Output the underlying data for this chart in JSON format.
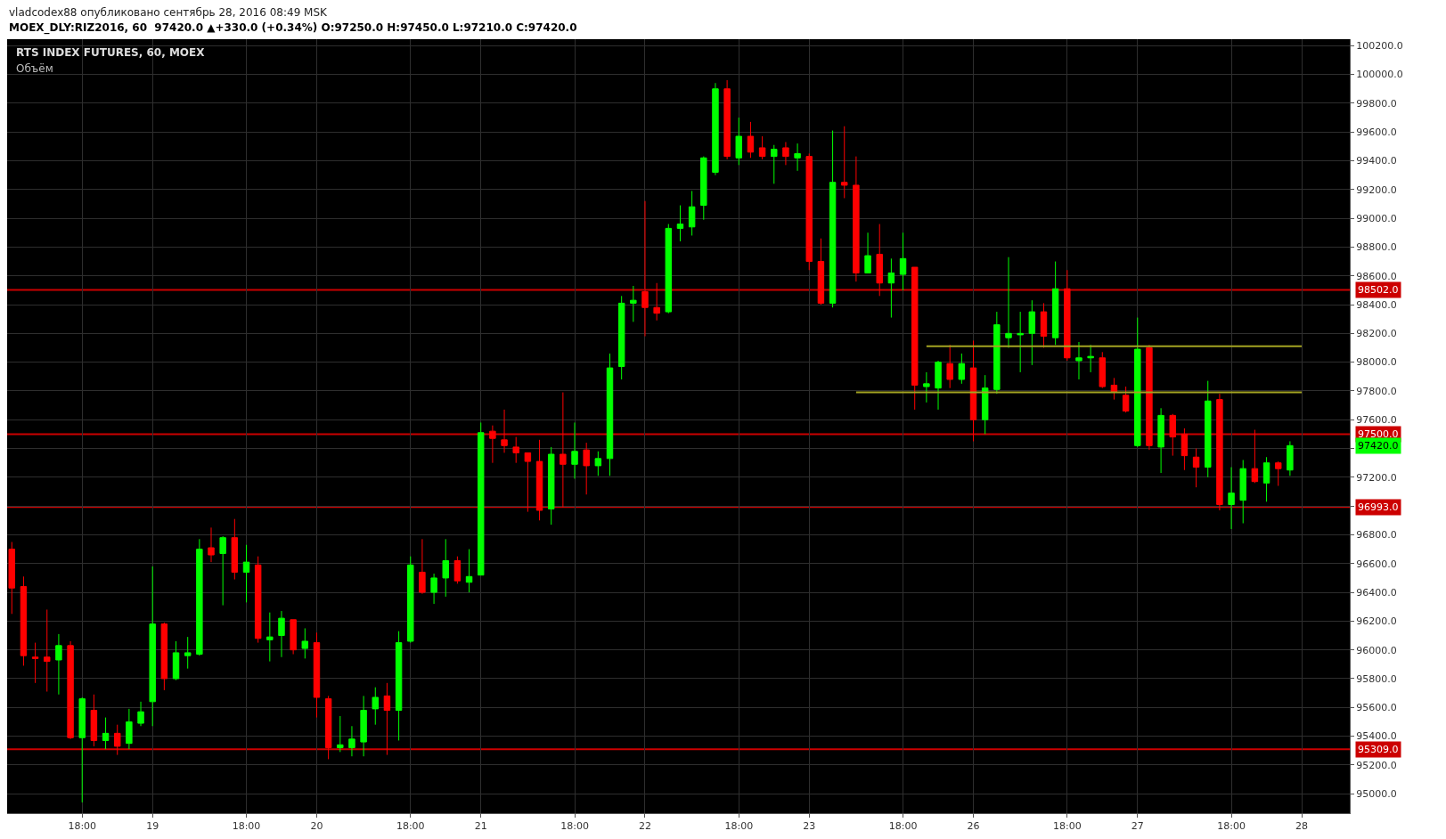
{
  "chart_data": {
    "type": "candlestick",
    "title": "RTS INDEX FUTURES, 60, MOEX",
    "subtitle": "MOEX_DLY:RIZ2016, 60  97420.0 ▲+330.0 (+0.34%) O:97250.0 H:97450.0 L:97210.0 C:97420.0",
    "annotations": [
      "vladcodex88 опубликовано сентябрь 28, 2016 08:49 MSK",
      "Объём",
      "97420.0"
    ],
    "categories": [
      null,
      null,
      null,
      null,
      null,
      null,
      "18:00",
      null,
      null,
      null,
      null,
      null,
      "19",
      null,
      null,
      null,
      null,
      null,
      null,
      null,
      "18:00",
      null,
      null,
      null,
      null,
      null,
      "20",
      null,
      null,
      null,
      null,
      null,
      null,
      null,
      "18:00",
      null,
      null,
      null,
      null,
      null,
      "21",
      null,
      null,
      null,
      null,
      null,
      null,
      null,
      "18:00",
      null,
      null,
      null,
      null,
      null,
      "22",
      null,
      null,
      null,
      null,
      null,
      null,
      null,
      "18:00",
      null,
      null,
      null,
      null,
      null,
      "23",
      null,
      null,
      null,
      null,
      null,
      null,
      null,
      "18:00",
      null,
      null,
      null,
      null,
      null,
      "26",
      null,
      null,
      null,
      null,
      null,
      null,
      null,
      "18:00",
      null,
      null,
      null,
      null,
      null,
      "27",
      null,
      null,
      null,
      null,
      null,
      null,
      null,
      "18:00",
      null,
      null,
      null,
      null,
      null,
      "28"
    ],
    "ohlc": [
      [
        96700,
        96750,
        96250,
        96430
      ],
      [
        96440,
        96510,
        95890,
        95960
      ],
      [
        95950,
        96050,
        95770,
        95940
      ],
      [
        95950,
        96280,
        95710,
        95920
      ],
      [
        95930,
        96110,
        95690,
        96030
      ],
      [
        96030,
        96060,
        95380,
        95390
      ],
      [
        95390,
        95670,
        94940,
        95660
      ],
      [
        95580,
        95690,
        95330,
        95370
      ],
      [
        95370,
        95530,
        95310,
        95420
      ],
      [
        95420,
        95480,
        95270,
        95330
      ],
      [
        95350,
        95590,
        95310,
        95500
      ],
      [
        95490,
        95640,
        95470,
        95570
      ],
      [
        95640,
        96580,
        95470,
        96180
      ],
      [
        96180,
        96190,
        95720,
        95800
      ],
      [
        95800,
        96060,
        95790,
        95980
      ],
      [
        95960,
        96090,
        95870,
        95980
      ],
      [
        95970,
        96770,
        95960,
        96700
      ],
      [
        96710,
        96850,
        96610,
        96660
      ],
      [
        96670,
        96790,
        96310,
        96780
      ],
      [
        96780,
        96910,
        96490,
        96540
      ],
      [
        96540,
        96730,
        96330,
        96610
      ],
      [
        96590,
        96650,
        96050,
        96080
      ],
      [
        96070,
        96260,
        95920,
        96090
      ],
      [
        96100,
        96270,
        95950,
        96220
      ],
      [
        96210,
        96210,
        95970,
        96000
      ],
      [
        96010,
        96150,
        95940,
        96060
      ],
      [
        96050,
        96120,
        95530,
        95670
      ],
      [
        95660,
        95680,
        95240,
        95320
      ],
      [
        95320,
        95540,
        95290,
        95340
      ],
      [
        95320,
        95470,
        95260,
        95380
      ],
      [
        95360,
        95680,
        95260,
        95580
      ],
      [
        95590,
        95740,
        95480,
        95670
      ],
      [
        95680,
        95770,
        95270,
        95580
      ],
      [
        95580,
        96130,
        95370,
        96050
      ],
      [
        96060,
        96650,
        96050,
        96590
      ],
      [
        96540,
        96770,
        96390,
        96400
      ],
      [
        96400,
        96530,
        96320,
        96500
      ],
      [
        96500,
        96770,
        96370,
        96620
      ],
      [
        96620,
        96650,
        96460,
        96480
      ],
      [
        96470,
        96700,
        96400,
        96510
      ],
      [
        96520,
        97580,
        96520,
        97510
      ],
      [
        97520,
        97560,
        97300,
        97470
      ],
      [
        97460,
        97670,
        97370,
        97420
      ],
      [
        97410,
        97480,
        97300,
        97370
      ],
      [
        97370,
        97370,
        96960,
        97310
      ],
      [
        97310,
        97460,
        96900,
        96970
      ],
      [
        96980,
        97410,
        96870,
        97360
      ],
      [
        97360,
        97790,
        96990,
        97290
      ],
      [
        97290,
        97580,
        97190,
        97380
      ],
      [
        97390,
        97440,
        97080,
        97280
      ],
      [
        97280,
        97380,
        97210,
        97330
      ],
      [
        97330,
        98060,
        97210,
        97960
      ],
      [
        97970,
        98460,
        97880,
        98410
      ],
      [
        98410,
        98530,
        98280,
        98430
      ],
      [
        98490,
        99120,
        98180,
        98380
      ],
      [
        98380,
        98550,
        98290,
        98340
      ],
      [
        98350,
        98960,
        98340,
        98930
      ],
      [
        98930,
        99090,
        98840,
        98960
      ],
      [
        98940,
        99190,
        98880,
        99080
      ],
      [
        99090,
        99430,
        98990,
        99420
      ],
      [
        99320,
        99940,
        99300,
        99900
      ],
      [
        99900,
        99960,
        99410,
        99430
      ],
      [
        99420,
        99700,
        99370,
        99570
      ],
      [
        99570,
        99670,
        99420,
        99460
      ],
      [
        99490,
        99570,
        99410,
        99430
      ],
      [
        99430,
        99510,
        99240,
        99480
      ],
      [
        99490,
        99530,
        99370,
        99430
      ],
      [
        99420,
        99520,
        99330,
        99450
      ],
      [
        99430,
        99450,
        98640,
        98700
      ],
      [
        98700,
        98860,
        98400,
        98410
      ],
      [
        98410,
        99610,
        98380,
        99250
      ],
      [
        99250,
        99640,
        99140,
        99230
      ],
      [
        99230,
        99430,
        98560,
        98620
      ],
      [
        98620,
        98900,
        98620,
        98740
      ],
      [
        98750,
        98960,
        98460,
        98550
      ],
      [
        98550,
        98720,
        98310,
        98620
      ],
      [
        98610,
        98900,
        98500,
        98720
      ],
      [
        98660,
        98660,
        97670,
        97840
      ],
      [
        97830,
        97930,
        97720,
        97850
      ],
      [
        97820,
        98010,
        97670,
        98000
      ],
      [
        97990,
        98120,
        97820,
        97880
      ],
      [
        97880,
        98060,
        97850,
        97990
      ],
      [
        97960,
        98150,
        97450,
        97600
      ],
      [
        97600,
        97910,
        97500,
        97820
      ],
      [
        97810,
        98350,
        97780,
        98260
      ],
      [
        98170,
        98730,
        98100,
        98200
      ],
      [
        98190,
        98350,
        97930,
        98200
      ],
      [
        98200,
        98430,
        97980,
        98350
      ],
      [
        98350,
        98410,
        98100,
        98180
      ],
      [
        98170,
        98700,
        98120,
        98510
      ],
      [
        98510,
        98640,
        98010,
        98030
      ],
      [
        98010,
        98140,
        97880,
        98030
      ],
      [
        98030,
        98120,
        97930,
        98040
      ],
      [
        98030,
        98070,
        97820,
        97830
      ],
      [
        97840,
        97890,
        97740,
        97790
      ],
      [
        97770,
        97830,
        97650,
        97660
      ],
      [
        97420,
        98310,
        97410,
        98090
      ],
      [
        98100,
        98120,
        97390,
        97420
      ],
      [
        97410,
        97680,
        97230,
        97630
      ],
      [
        97630,
        97640,
        97350,
        97480
      ],
      [
        97500,
        97540,
        97250,
        97350
      ],
      [
        97340,
        97400,
        97130,
        97270
      ],
      [
        97270,
        97870,
        97200,
        97730
      ],
      [
        97740,
        97780,
        96970,
        97010
      ],
      [
        97010,
        97270,
        96840,
        97090
      ],
      [
        97040,
        97320,
        96880,
        97260
      ],
      [
        97260,
        97530,
        97160,
        97170
      ],
      [
        97160,
        97340,
        97030,
        97300
      ],
      [
        97300,
        97310,
        97140,
        97260
      ],
      [
        97250,
        97450,
        97210,
        97420
      ],
      null
    ],
    "series": [
      {
        "type": "line",
        "color": "#a3a322",
        "values": [
          null,
          null,
          null,
          null,
          null,
          null,
          null,
          null,
          null,
          null,
          null,
          null,
          null,
          null,
          null,
          null,
          null,
          null,
          null,
          null,
          null,
          null,
          null,
          null,
          null,
          null,
          null,
          null,
          null,
          null,
          null,
          null,
          null,
          null,
          null,
          null,
          null,
          null,
          null,
          null,
          null,
          null,
          null,
          null,
          null,
          null,
          null,
          null,
          null,
          null,
          null,
          null,
          null,
          null,
          null,
          null,
          null,
          null,
          null,
          null,
          null,
          null,
          null,
          null,
          null,
          null,
          null,
          null,
          null,
          null,
          null,
          null,
          97790,
          97790,
          97790,
          97790,
          97790,
          97790,
          97790,
          97790,
          97790,
          97790,
          97790,
          97790,
          97790,
          97790,
          97790,
          97790,
          97790,
          97790,
          97790,
          97790,
          97790,
          97790,
          97790,
          97790,
          97790,
          97790,
          97790,
          97790,
          97790,
          97790,
          97790,
          97790,
          97790,
          97790,
          97790,
          97790,
          97790,
          97790,
          97790
        ]
      },
      {
        "type": "line",
        "color": "#a3a322",
        "values": [
          null,
          null,
          null,
          null,
          null,
          null,
          null,
          null,
          null,
          null,
          null,
          null,
          null,
          null,
          null,
          null,
          null,
          null,
          null,
          null,
          null,
          null,
          null,
          null,
          null,
          null,
          null,
          null,
          null,
          null,
          null,
          null,
          null,
          null,
          null,
          null,
          null,
          null,
          null,
          null,
          null,
          null,
          null,
          null,
          null,
          null,
          null,
          null,
          null,
          null,
          null,
          null,
          null,
          null,
          null,
          null,
          null,
          null,
          null,
          null,
          null,
          null,
          null,
          null,
          null,
          null,
          null,
          null,
          null,
          null,
          null,
          null,
          null,
          null,
          null,
          null,
          null,
          null,
          98110,
          98110,
          98110,
          98110,
          98110,
          98110,
          98110,
          98110,
          98110,
          98110,
          98110,
          98110,
          98110,
          98110,
          98110,
          98110,
          98110,
          98110,
          98110,
          98110,
          98110,
          98110,
          98110,
          98110,
          98110,
          98110,
          98110,
          98110,
          98110,
          98110,
          98110,
          98110,
          98110
        ]
      }
    ],
    "ref_lines": [
      {
        "axis": "y",
        "value": 98502,
        "label": "98502.0",
        "color": "#cc0000"
      },
      {
        "axis": "y",
        "value": 97500,
        "label": "97500.0",
        "color": "#cc0000"
      },
      {
        "axis": "y",
        "value": 96993,
        "label": "96993.0",
        "color": "#cc0000"
      },
      {
        "axis": "y",
        "value": 95309,
        "label": "95309.0",
        "color": "#cc0000"
      }
    ],
    "ylim": [
      94865,
      100245
    ],
    "yticks": [
      {
        "value": 95000,
        "label": "95000.0"
      },
      {
        "value": 95200,
        "label": "95200.0"
      },
      {
        "value": 95400,
        "label": "95400.0"
      },
      {
        "value": 95600,
        "label": "95600.0"
      },
      {
        "value": 95800,
        "label": "95800.0"
      },
      {
        "value": 96000,
        "label": "96000.0"
      },
      {
        "value": 96200,
        "label": "96200.0"
      },
      {
        "value": 96400,
        "label": "96400.0"
      },
      {
        "value": 96600,
        "label": "96600.0"
      },
      {
        "value": 96800,
        "label": "96800.0"
      },
      {
        "value": 97000,
        "label": null
      },
      {
        "value": 97200,
        "label": "97200.0"
      },
      {
        "value": 97400,
        "label": null
      },
      {
        "value": 97600,
        "label": "97600.0"
      },
      {
        "value": 97800,
        "label": "97800.0"
      },
      {
        "value": 98000,
        "label": "98000.0"
      },
      {
        "value": 98200,
        "label": "98200.0"
      },
      {
        "value": 98400,
        "label": "98400.0"
      },
      {
        "value": 98600,
        "label": "98600.0"
      },
      {
        "value": 98800,
        "label": "98800.0"
      },
      {
        "value": 99000,
        "label": "99000.0"
      },
      {
        "value": 99200,
        "label": "99200.0"
      },
      {
        "value": 99400,
        "label": "99400.0"
      },
      {
        "value": 99600,
        "label": "99600.0"
      },
      {
        "value": 99800,
        "label": "99800.0"
      },
      {
        "value": 100000,
        "label": "100000.0"
      },
      {
        "value": 100200,
        "label": "100200.0"
      }
    ],
    "grid": true
  }
}
